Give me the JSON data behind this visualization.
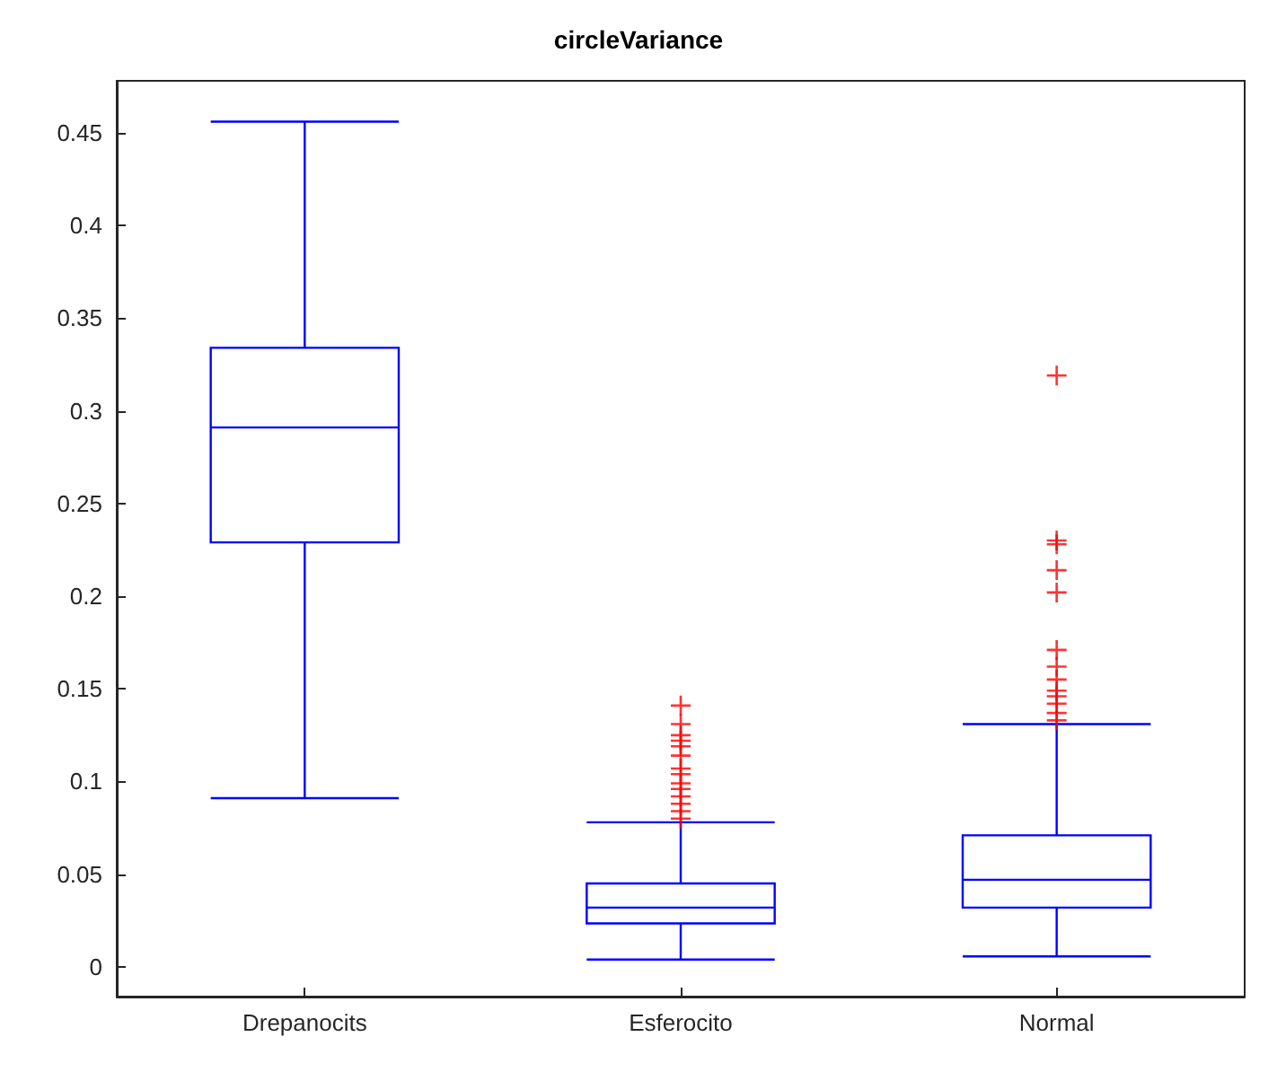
{
  "chart_data": {
    "type": "box",
    "title": "circleVariance",
    "categories": [
      "Drepanocits",
      "Esferocito",
      "Normal"
    ],
    "ylim": [
      -0.016,
      0.478
    ],
    "yticks": [
      0,
      0.05,
      0.1,
      0.15,
      0.2,
      0.25,
      0.3,
      0.35,
      0.4,
      0.45
    ],
    "grid": false,
    "marker": "cross",
    "series": [
      {
        "color": "#0000ff",
        "boxes": [
          {
            "low": 0.091,
            "q1": 0.229,
            "median": 0.291,
            "q3": 0.334,
            "high": 0.456
          },
          {
            "low": 0.004,
            "q1": 0.0235,
            "median": 0.032,
            "q3": 0.045,
            "high": 0.078
          },
          {
            "low": 0.0057,
            "q1": 0.032,
            "median": 0.047,
            "q3": 0.071,
            "high": 0.131
          }
        ]
      },
      {
        "type": "scatter",
        "color": "#ff0000",
        "x": [
          "Esferocito",
          "Esferocito",
          "Esferocito",
          "Esferocito",
          "Esferocito",
          "Esferocito",
          "Esferocito",
          "Esferocito",
          "Esferocito",
          "Esferocito",
          "Esferocito",
          "Esferocito",
          "Esferocito",
          "Esferocito",
          "Normal",
          "Normal",
          "Normal",
          "Normal",
          "Normal",
          "Normal",
          "Normal",
          "Normal",
          "Normal",
          "Normal",
          "Normal",
          "Normal",
          "Normal"
        ],
        "values": [
          0.08,
          0.084,
          0.088,
          0.092,
          0.096,
          0.099,
          0.104,
          0.107,
          0.114,
          0.119,
          0.122,
          0.125,
          0.131,
          0.141,
          0.319,
          0.23,
          0.228,
          0.214,
          0.202,
          0.171,
          0.162,
          0.155,
          0.149,
          0.146,
          0.142,
          0.137,
          0.133
        ]
      }
    ]
  }
}
